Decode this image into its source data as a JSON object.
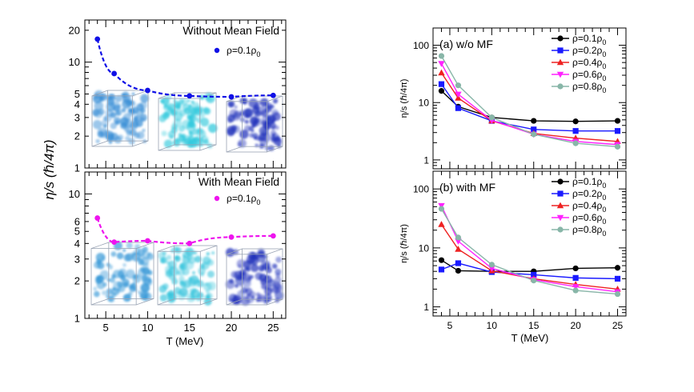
{
  "chart_data": [
    {
      "type": "scatter",
      "panel": "left-top",
      "title": "Without Mean Field",
      "title_color": "#1010e6",
      "legend": "ρ=0.1ρ",
      "legend_sub": "0",
      "ylabel": "η/s (ℏ/4π)",
      "xlabel": "",
      "xlim": [
        2.5,
        26.5
      ],
      "ylim": [
        1,
        25
      ],
      "yscale": "log",
      "yticks": [
        1,
        2,
        3,
        4,
        5,
        10,
        20
      ],
      "color": "#1010e6",
      "x": [
        4,
        6,
        10,
        15,
        20,
        25
      ],
      "y": [
        16.5,
        7.8,
        5.4,
        4.8,
        4.7,
        4.85
      ],
      "fit_line": "dashed"
    },
    {
      "type": "scatter",
      "panel": "left-bottom",
      "title": "With Mean Field",
      "title_color": "#ee14ee",
      "legend": "ρ=0.1ρ",
      "legend_sub": "0",
      "xlabel": "T (MeV)",
      "xlim": [
        2.5,
        26.5
      ],
      "ylim": [
        1,
        15
      ],
      "yscale": "log",
      "yticks": [
        1,
        2,
        3,
        4,
        5,
        6,
        10
      ],
      "xticks": [
        5,
        10,
        15,
        20,
        25
      ],
      "color": "#ee14ee",
      "x": [
        4,
        6,
        10,
        15,
        20,
        25
      ],
      "y": [
        6.4,
        4.1,
        4.2,
        4.0,
        4.5,
        4.6
      ],
      "fit_line": "dashed"
    },
    {
      "type": "line",
      "panel": "right-top",
      "title": "(a) w/o MF",
      "ylabel": "η/s (ℏ/4π)",
      "xlabel": "",
      "xlim": [
        3,
        26
      ],
      "ylim": [
        0.7,
        200
      ],
      "yscale": "log",
      "yticks": [
        1,
        10,
        100
      ],
      "x": [
        4,
        6,
        10,
        15,
        20,
        25
      ],
      "series": [
        {
          "name": "ρ=0.1ρ",
          "sub": "0",
          "color": "#000000",
          "marker": "circle",
          "values": [
            16,
            8.5,
            5.5,
            4.8,
            4.7,
            4.8
          ]
        },
        {
          "name": "ρ=0.2ρ",
          "sub": "0",
          "color": "#1a1aff",
          "marker": "square",
          "values": [
            21,
            8.0,
            4.8,
            3.4,
            3.2,
            3.2
          ]
        },
        {
          "name": "ρ=0.4ρ",
          "sub": "0",
          "color": "#ee2222",
          "marker": "triangle-up",
          "values": [
            33,
            12,
            4.8,
            2.9,
            2.4,
            2.1
          ]
        },
        {
          "name": "ρ=0.6ρ",
          "sub": "0",
          "color": "#ff22ff",
          "marker": "triangle-down",
          "values": [
            48,
            14,
            4.9,
            2.8,
            2.1,
            1.85
          ]
        },
        {
          "name": "ρ=0.8ρ",
          "sub": "0",
          "color": "#88b6a8",
          "marker": "circle",
          "values": [
            65,
            20,
            5.5,
            2.8,
            1.95,
            1.7
          ]
        }
      ]
    },
    {
      "type": "line",
      "panel": "right-bottom",
      "title": "(b) with MF",
      "ylabel": "η/s (ℏ/4π)",
      "xlabel": "T (MeV)",
      "xlim": [
        3,
        26
      ],
      "ylim": [
        0.7,
        200
      ],
      "yscale": "log",
      "yticks": [
        1,
        10,
        100
      ],
      "xticks": [
        5,
        10,
        15,
        20,
        25
      ],
      "x": [
        4,
        6,
        10,
        15,
        20,
        25
      ],
      "series": [
        {
          "name": "ρ=0.1ρ",
          "sub": "0",
          "color": "#000000",
          "marker": "circle",
          "values": [
            6.2,
            4.1,
            4.0,
            4.0,
            4.5,
            4.6
          ]
        },
        {
          "name": "ρ=0.2ρ",
          "sub": "0",
          "color": "#1a1aff",
          "marker": "square",
          "values": [
            4.3,
            5.5,
            3.9,
            3.5,
            3.1,
            3.0
          ]
        },
        {
          "name": "ρ=0.4ρ",
          "sub": "0",
          "color": "#ee2222",
          "marker": "triangle-up",
          "values": [
            25,
            9.5,
            4.1,
            3.0,
            2.4,
            2.0
          ]
        },
        {
          "name": "ρ=0.6ρ",
          "sub": "0",
          "color": "#ff22ff",
          "marker": "triangle-down",
          "values": [
            52,
            13,
            4.5,
            2.9,
            2.2,
            1.8
          ]
        },
        {
          "name": "ρ=0.8ρ",
          "sub": "0",
          "color": "#88b6a8",
          "marker": "circle",
          "values": [
            46,
            15,
            5.2,
            2.8,
            1.9,
            1.65
          ]
        }
      ]
    }
  ],
  "insets": [
    {
      "name": "cube-wo-mf-1",
      "color": "#3a8fd6"
    },
    {
      "name": "cube-wo-mf-2",
      "color": "#2ec8dc"
    },
    {
      "name": "cube-wo-mf-3",
      "color": "#2233bb"
    },
    {
      "name": "cube-w-mf-1",
      "color": "#3a9ad8"
    },
    {
      "name": "cube-w-mf-2",
      "color": "#36c4dc"
    },
    {
      "name": "cube-w-mf-3",
      "color": "#2233bb"
    }
  ]
}
